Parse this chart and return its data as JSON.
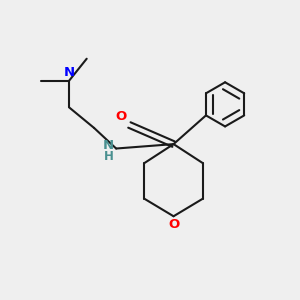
{
  "bg_color": "#efefef",
  "line_color": "#1a1a1a",
  "N_color": "#0000ff",
  "O_color": "#ff0000",
  "NH_color": "#4a9090",
  "line_width": 1.5,
  "font_size": 8.5,
  "fig_width": 3.0,
  "fig_height": 3.0,
  "dpi": 100,
  "xlim": [
    0,
    10
  ],
  "ylim": [
    0,
    10
  ]
}
